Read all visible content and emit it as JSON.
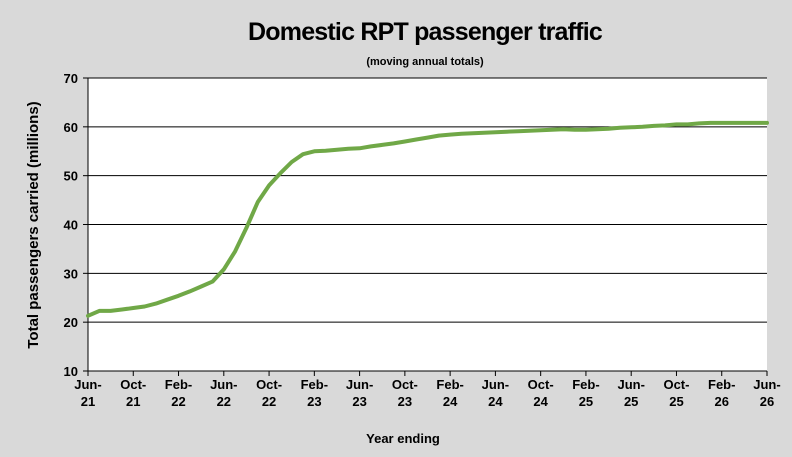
{
  "chart_data": {
    "type": "line",
    "title": "Domestic RPT passenger traffic",
    "subtitle": "(moving annual totals)",
    "xlabel": "Year ending",
    "ylabel": "Total passengers carried (millions)",
    "ylim": [
      10,
      70
    ],
    "yticks": [
      10,
      20,
      30,
      40,
      50,
      60,
      70
    ],
    "grid": true,
    "legend": "none",
    "colors": {
      "series": "#70a847",
      "background": "#d9d9d9",
      "plot": "#ffffff",
      "grid": "#000000"
    },
    "x_ticks": [
      {
        "label": [
          "Jun-",
          "21"
        ]
      },
      {
        "label": [
          "Oct-",
          "21"
        ]
      },
      {
        "label": [
          "Feb-",
          "22"
        ]
      },
      {
        "label": [
          "Jun-",
          "22"
        ]
      },
      {
        "label": [
          "Oct-",
          "22"
        ]
      },
      {
        "label": [
          "Feb-",
          "23"
        ]
      },
      {
        "label": [
          "Jun-",
          "23"
        ]
      },
      {
        "label": [
          "Oct-",
          "23"
        ]
      },
      {
        "label": [
          "Feb-",
          "24"
        ]
      },
      {
        "label": [
          "Jun-",
          "24"
        ]
      },
      {
        "label": [
          "Oct-",
          "24"
        ]
      },
      {
        "label": [
          "Feb-",
          "25"
        ]
      },
      {
        "label": [
          "Jun-",
          "25"
        ]
      },
      {
        "label": [
          "Oct-",
          "25"
        ]
      },
      {
        "label": [
          "Feb-",
          "26"
        ]
      },
      {
        "label": [
          "Jun-",
          "26"
        ]
      }
    ],
    "series": [
      {
        "x": [
          "2021-06",
          "2021-07",
          "2021-08",
          "2021-09",
          "2021-10",
          "2021-11",
          "2021-12",
          "2022-01",
          "2022-02",
          "2022-03",
          "2022-04",
          "2022-05",
          "2022-06",
          "2022-07",
          "2022-08",
          "2022-09",
          "2022-10",
          "2022-11",
          "2022-12",
          "2023-01",
          "2023-02",
          "2023-03",
          "2023-04",
          "2023-05",
          "2023-06",
          "2023-07",
          "2023-08",
          "2023-09",
          "2023-10",
          "2023-11",
          "2023-12",
          "2024-01",
          "2024-02",
          "2024-03",
          "2024-04",
          "2024-05",
          "2024-06",
          "2024-07",
          "2024-08",
          "2024-09",
          "2024-10",
          "2024-11",
          "2024-12",
          "2025-01",
          "2025-02",
          "2025-03",
          "2025-04",
          "2025-05",
          "2025-06",
          "2025-07",
          "2025-08",
          "2025-09",
          "2025-10",
          "2025-11",
          "2025-12",
          "2026-01",
          "2026-02",
          "2026-03",
          "2026-04",
          "2026-05",
          "2026-06"
        ],
        "values": [
          21.3,
          22.3,
          22.3,
          22.6,
          22.9,
          23.2,
          23.8,
          24.6,
          25.4,
          26.3,
          27.3,
          28.3,
          30.8,
          34.5,
          39.3,
          44.6,
          48.0,
          50.5,
          52.8,
          54.4,
          55.0,
          55.1,
          55.3,
          55.5,
          55.6,
          56.0,
          56.3,
          56.6,
          57.0,
          57.4,
          57.8,
          58.2,
          58.4,
          58.6,
          58.7,
          58.8,
          58.9,
          59.0,
          59.1,
          59.2,
          59.3,
          59.4,
          59.5,
          59.4,
          59.4,
          59.5,
          59.6,
          59.8,
          59.9,
          60.0,
          60.2,
          60.3,
          60.5,
          60.5,
          60.7,
          60.8,
          60.8,
          60.8,
          60.8,
          60.8,
          60.8
        ]
      }
    ]
  }
}
